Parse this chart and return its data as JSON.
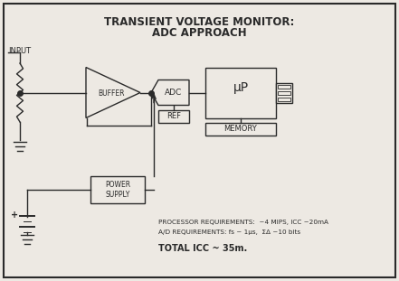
{
  "title_line1": "TRANSIENT VOLTAGE MONITOR:",
  "title_line2": "ADC APPROACH",
  "bg_color": "#ede9e3",
  "line_color": "#2a2a2a",
  "text_color": "#2a2a2a",
  "input_label": "INPUT",
  "buffer_label": "BUFFER",
  "adc_label": "ADC",
  "ref_label": "REF",
  "up_label": "μP",
  "memory_label": "MEMORY",
  "power_supply_label": "POWER\nSUPPLY",
  "proc_req_line1": "PROCESSOR REQUIREMENTS:  ~4 MIPS, ICC ~20mA",
  "proc_req_line2": "A/D REQUIREMENTS: fs ~ 1μs,  ΣΔ ~10 bits",
  "total_line": "TOTAL ICC ~ 35m.",
  "figsize": [
    4.41,
    3.11
  ],
  "dpi": 100
}
